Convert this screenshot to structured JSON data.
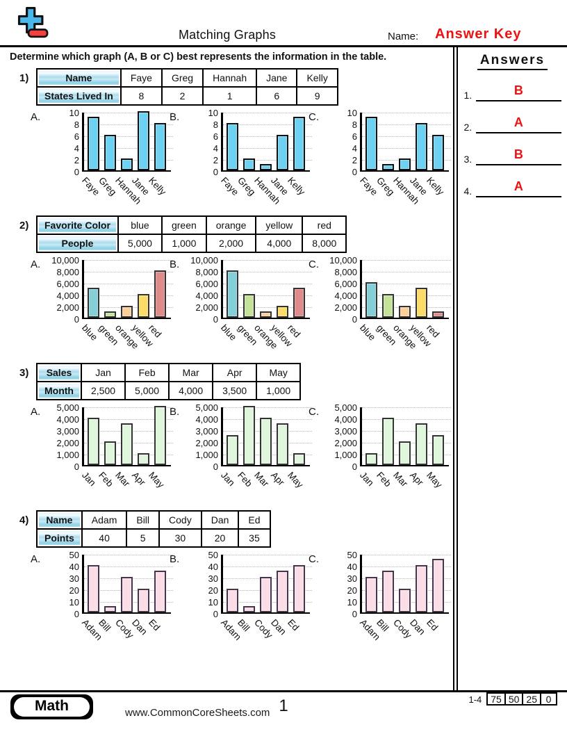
{
  "header": {
    "title": "Matching Graphs",
    "name_label": "Name:",
    "answer_key": "Answer Key",
    "accent_red": "#ee1111",
    "logo_blue": "#49b7e9",
    "logo_red": "#f2413e"
  },
  "instruction": "Determine which graph (A, B or C) best represents the information in the table.",
  "answers_panel": {
    "title": "Answers",
    "items": [
      {
        "num": "1.",
        "letter": "B"
      },
      {
        "num": "2.",
        "letter": "A"
      },
      {
        "num": "3.",
        "letter": "B"
      },
      {
        "num": "4.",
        "letter": "A"
      }
    ]
  },
  "problems": [
    {
      "num": "1)",
      "table": [
        {
          "header": "Name",
          "cells": [
            "Faye",
            "Greg",
            "Hannah",
            "Jane",
            "Kelly"
          ]
        },
        {
          "header": "States Lived In",
          "cells": [
            "8",
            "2",
            "1",
            "6",
            "9"
          ]
        }
      ]
    },
    {
      "num": "2)",
      "table": [
        {
          "header": "Favorite Color",
          "cells": [
            "blue",
            "green",
            "orange",
            "yellow",
            "red"
          ]
        },
        {
          "header": "People",
          "cells": [
            "5,000",
            "1,000",
            "2,000",
            "4,000",
            "8,000"
          ]
        }
      ]
    },
    {
      "num": "3)",
      "table": [
        {
          "header": "Sales",
          "cells": [
            "Jan",
            "Feb",
            "Mar",
            "Apr",
            "May"
          ]
        },
        {
          "header": "Month",
          "cells": [
            "2,500",
            "5,000",
            "4,000",
            "3,500",
            "1,000"
          ]
        }
      ]
    },
    {
      "num": "4)",
      "table": [
        {
          "header": "Name",
          "cells": [
            "Adam",
            "Bill",
            "Cody",
            "Dan",
            "Ed"
          ]
        },
        {
          "header": "Points",
          "cells": [
            "40",
            "5",
            "30",
            "20",
            "35"
          ]
        }
      ]
    }
  ],
  "chart_data": [
    {
      "problem": "1)",
      "type": "bar",
      "categories": [
        "Faye",
        "Greg",
        "Hannah",
        "Jane",
        "Kelly"
      ],
      "ylim": [
        0,
        10
      ],
      "ytick_labels": [
        "10",
        "8",
        "6",
        "4",
        "2",
        "0"
      ],
      "grid": "dotted",
      "bar_fill": "#6fd1f2",
      "bar_border": "#111111",
      "variants": [
        {
          "label": "A.",
          "values": [
            9,
            6,
            2,
            10,
            8
          ]
        },
        {
          "label": "B.",
          "values": [
            8,
            2,
            1,
            6,
            9
          ]
        },
        {
          "label": "C.",
          "values": [
            9,
            1,
            2,
            8,
            6
          ]
        }
      ]
    },
    {
      "problem": "2)",
      "type": "bar",
      "categories": [
        "blue",
        "green",
        "orange",
        "yellow",
        "red"
      ],
      "ylim": [
        0,
        10000
      ],
      "ytick_labels": [
        "10,000",
        "8,000",
        "6,000",
        "4,000",
        "2,000",
        "0"
      ],
      "grid": "dotted",
      "bar_fills": [
        "#85cfd8",
        "#c5e29a",
        "#fbcf9b",
        "#fcdc66",
        "#df8a8b"
      ],
      "bar_border": "#333333",
      "variants": [
        {
          "label": "A.",
          "values": [
            5000,
            1000,
            2000,
            4000,
            8000
          ]
        },
        {
          "label": "B.",
          "values": [
            8000,
            4000,
            1000,
            2000,
            5000
          ]
        },
        {
          "label": "C.",
          "values": [
            6000,
            4000,
            2000,
            5000,
            1000
          ]
        }
      ]
    },
    {
      "problem": "3)",
      "type": "bar",
      "categories": [
        "Jan",
        "Feb",
        "Mar",
        "Apr",
        "May"
      ],
      "ylim": [
        0,
        5000
      ],
      "ytick_labels": [
        "5,000",
        "4,000",
        "3,000",
        "2,000",
        "1,000",
        "0"
      ],
      "grid": "dotted",
      "bar_fill": "#dff5dc",
      "bar_border": "#333333",
      "variants": [
        {
          "label": "A.",
          "values": [
            4000,
            2000,
            3500,
            1000,
            5000
          ]
        },
        {
          "label": "B.",
          "values": [
            2500,
            5000,
            4000,
            3500,
            1000
          ]
        },
        {
          "label": "C.",
          "values": [
            1000,
            4000,
            2000,
            3500,
            2500
          ]
        }
      ]
    },
    {
      "problem": "4)",
      "type": "bar",
      "categories": [
        "Adam",
        "Bill",
        "Cody",
        "Dan",
        "Ed"
      ],
      "ylim": [
        0,
        50
      ],
      "ytick_labels": [
        "50",
        "40",
        "30",
        "20",
        "10",
        "0"
      ],
      "grid": "dotted",
      "bar_fill": "#fbdde8",
      "bar_border": "#46344a",
      "variants": [
        {
          "label": "A.",
          "values": [
            40,
            5,
            30,
            20,
            35
          ]
        },
        {
          "label": "B.",
          "values": [
            20,
            5,
            30,
            35,
            40
          ]
        },
        {
          "label": "C.",
          "values": [
            30,
            35,
            20,
            40,
            45
          ]
        }
      ]
    }
  ],
  "footer": {
    "subject": "Math",
    "website": "www.CommonCoreSheets.com",
    "page_number": "1",
    "problem_range": "1-4",
    "score_boxes": [
      "75",
      "50",
      "25",
      "0"
    ]
  }
}
